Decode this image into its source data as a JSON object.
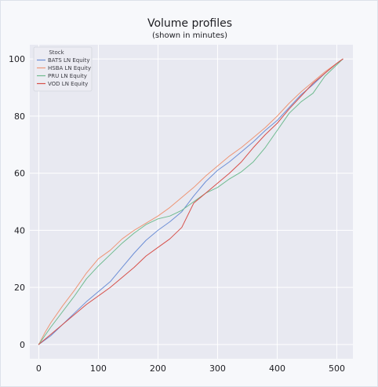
{
  "chart_data": {
    "type": "line",
    "title": "Volume profiles",
    "subtitle": "(shown in minutes)",
    "xlabel": "",
    "ylabel": "",
    "xlim": [
      -15,
      527
    ],
    "ylim": [
      -5,
      105
    ],
    "xticks": [
      0,
      100,
      200,
      300,
      400,
      500
    ],
    "yticks": [
      0,
      20,
      40,
      60,
      80,
      100
    ],
    "grid": true,
    "legend": {
      "title": "Stock",
      "placement": "top-left"
    },
    "series": [
      {
        "name": "BATS LN Equity",
        "color": "#6d8fd6",
        "points": [
          [
            0,
            0
          ],
          [
            20,
            3
          ],
          [
            40,
            7
          ],
          [
            60,
            11
          ],
          [
            80,
            15
          ],
          [
            100,
            18.5
          ],
          [
            120,
            22
          ],
          [
            140,
            27
          ],
          [
            160,
            32
          ],
          [
            180,
            36.5
          ],
          [
            200,
            40
          ],
          [
            220,
            43
          ],
          [
            240,
            46.5
          ],
          [
            260,
            52
          ],
          [
            280,
            57
          ],
          [
            300,
            61
          ],
          [
            320,
            64
          ],
          [
            340,
            67.5
          ],
          [
            360,
            71
          ],
          [
            380,
            75
          ],
          [
            400,
            78.5
          ],
          [
            420,
            83
          ],
          [
            440,
            87.5
          ],
          [
            460,
            91
          ],
          [
            480,
            95
          ],
          [
            500,
            98.5
          ],
          [
            510,
            100
          ]
        ]
      },
      {
        "name": "HSBA LN Equity",
        "color": "#ee9575",
        "points": [
          [
            0,
            0
          ],
          [
            10,
            4
          ],
          [
            20,
            7.5
          ],
          [
            40,
            13.5
          ],
          [
            60,
            19
          ],
          [
            80,
            25
          ],
          [
            100,
            30
          ],
          [
            120,
            33
          ],
          [
            140,
            37
          ],
          [
            160,
            40
          ],
          [
            180,
            42.5
          ],
          [
            200,
            45
          ],
          [
            220,
            48
          ],
          [
            240,
            51.5
          ],
          [
            260,
            55
          ],
          [
            280,
            59
          ],
          [
            300,
            62.5
          ],
          [
            320,
            66
          ],
          [
            340,
            69
          ],
          [
            360,
            72.5
          ],
          [
            380,
            76
          ],
          [
            400,
            80
          ],
          [
            420,
            84.5
          ],
          [
            440,
            88.5
          ],
          [
            460,
            92
          ],
          [
            480,
            95.5
          ],
          [
            500,
            98.5
          ],
          [
            510,
            100
          ]
        ]
      },
      {
        "name": "PRU LN Equity",
        "color": "#6fbb8f",
        "points": [
          [
            0,
            0
          ],
          [
            10,
            3
          ],
          [
            20,
            6
          ],
          [
            40,
            11.5
          ],
          [
            60,
            17
          ],
          [
            80,
            23
          ],
          [
            100,
            27.5
          ],
          [
            120,
            31.5
          ],
          [
            140,
            35.5
          ],
          [
            160,
            39
          ],
          [
            180,
            42
          ],
          [
            200,
            44
          ],
          [
            220,
            45
          ],
          [
            240,
            47
          ],
          [
            260,
            50
          ],
          [
            280,
            53
          ],
          [
            300,
            55
          ],
          [
            320,
            58
          ],
          [
            340,
            60.5
          ],
          [
            360,
            64
          ],
          [
            380,
            69
          ],
          [
            400,
            75
          ],
          [
            420,
            81
          ],
          [
            440,
            85
          ],
          [
            460,
            88
          ],
          [
            480,
            94
          ],
          [
            500,
            98
          ],
          [
            510,
            100
          ]
        ]
      },
      {
        "name": "VOD LN Equity",
        "color": "#d7504a",
        "points": [
          [
            0,
            0
          ],
          [
            20,
            3.5
          ],
          [
            40,
            7
          ],
          [
            60,
            10.5
          ],
          [
            80,
            14
          ],
          [
            100,
            17
          ],
          [
            120,
            20
          ],
          [
            140,
            23.5
          ],
          [
            160,
            27
          ],
          [
            180,
            31
          ],
          [
            200,
            34
          ],
          [
            220,
            37
          ],
          [
            240,
            41
          ],
          [
            260,
            49.5
          ],
          [
            280,
            53
          ],
          [
            300,
            56.5
          ],
          [
            320,
            60
          ],
          [
            340,
            64
          ],
          [
            360,
            69
          ],
          [
            380,
            73.5
          ],
          [
            400,
            77.5
          ],
          [
            420,
            82.5
          ],
          [
            440,
            87
          ],
          [
            460,
            91.5
          ],
          [
            480,
            95
          ],
          [
            500,
            98.5
          ],
          [
            510,
            100
          ]
        ]
      }
    ]
  }
}
